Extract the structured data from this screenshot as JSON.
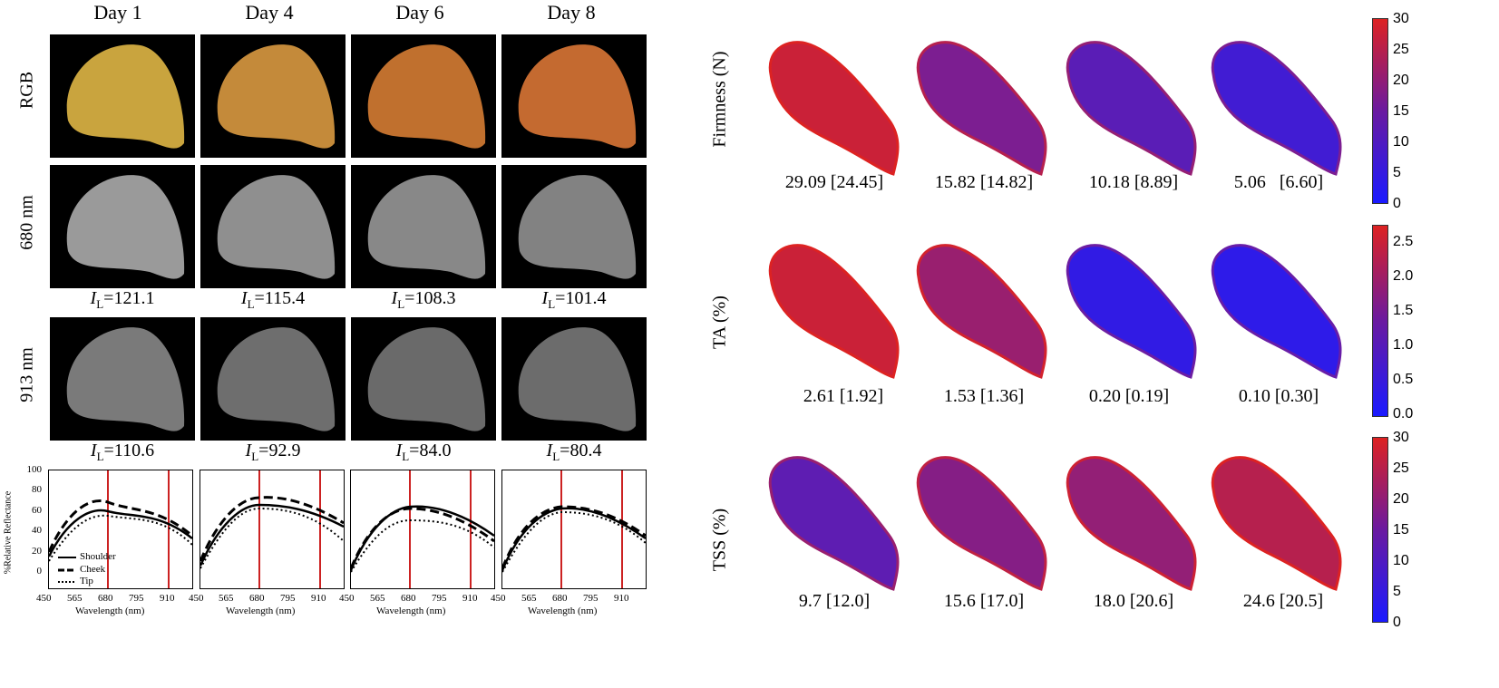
{
  "left_panel": {
    "days": [
      "Day 1",
      "Day 4",
      "Day 6",
      "Day 8"
    ],
    "row_labels": [
      "RGB",
      "680 nm",
      "913 nm"
    ],
    "il_symbol": "I",
    "il_sub": "L",
    "il_680": [
      "=121.1",
      "=115.4",
      "=108.3",
      "=101.4"
    ],
    "il_913": [
      "=110.6",
      "=92.9",
      "=84.0",
      "=80.4"
    ],
    "plot_ylabel": "%Relative Reflectance",
    "plot_xlabel": "Wavelength (nm)",
    "plot_yticks": [
      "0",
      "20",
      "40",
      "60",
      "80",
      "100"
    ],
    "plot_xticks": [
      "450",
      "565",
      "680",
      "795",
      "910"
    ],
    "legend": [
      "Shoulder",
      "Cheek",
      "Tip"
    ],
    "colors": {
      "marker_line": "#cc2222",
      "rgb_fruit": [
        "#c9a43e",
        "#c48a3a",
        "#c0702e",
        "#c46a30"
      ]
    }
  },
  "right_panel": {
    "row_labels": [
      "Firmness (N)",
      "TA (%)",
      "TSS (%)"
    ],
    "values": [
      [
        "29.09 [24.45]",
        "15.82 [14.82]",
        "10.18 [8.89]",
        "5.06   [6.60]"
      ],
      [
        "2.61 [1.92]",
        "1.53 [1.36]",
        "0.20 [0.19]",
        "0.10 [0.30]"
      ],
      [
        "9.7 [12.0]",
        "15.6 [17.0]",
        "18.0 [20.6]",
        "24.6 [20.5]"
      ]
    ],
    "colorbar_ticks": [
      [
        "30",
        "25",
        "20",
        "15",
        "10",
        "5",
        "0"
      ],
      [
        "2.5",
        "2.0",
        "1.5",
        "1.0",
        "0.5",
        "0.0"
      ],
      [
        "30",
        "25",
        "20",
        "15",
        "10",
        "5",
        "0"
      ]
    ],
    "colormap": {
      "low": "#1a1aff",
      "high": "#dd2222"
    },
    "map_levels": [
      [
        0.9,
        0.5,
        0.33,
        0.2
      ],
      [
        0.9,
        0.65,
        0.12,
        0.1
      ],
      [
        0.35,
        0.55,
        0.62,
        0.8
      ]
    ]
  }
}
